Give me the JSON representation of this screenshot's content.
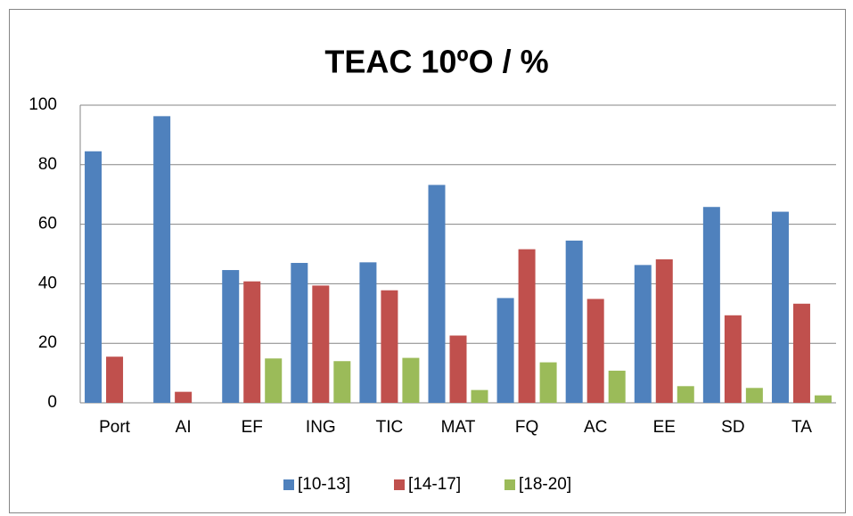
{
  "chart_data": {
    "type": "bar",
    "title": "TEAC 10ºO / %",
    "categories": [
      "Port",
      "AI",
      "EF",
      "ING",
      "TIC",
      "MAT",
      "FQ",
      "AC",
      "EE",
      "SD",
      "TA"
    ],
    "series": [
      {
        "name": "[10-13]",
        "color": "#4f81bd",
        "values": [
          84.5,
          96.3,
          44.6,
          47,
          47.2,
          73.2,
          35.2,
          54.5,
          46.3,
          65.8,
          64.2
        ]
      },
      {
        "name": "[14-17]",
        "color": "#c0504d",
        "values": [
          15.5,
          3.7,
          40.8,
          39.4,
          37.8,
          22.6,
          51.6,
          34.9,
          48.2,
          29.4,
          33.3
        ]
      },
      {
        "name": "[18-20]",
        "color": "#9bbb59",
        "values": [
          0,
          0,
          14.9,
          14,
          15.1,
          4.3,
          13.6,
          10.8,
          5.6,
          5,
          2.5
        ]
      }
    ],
    "ylim": [
      0,
      100
    ],
    "yticks": [
      0,
      20,
      40,
      60,
      80,
      100
    ],
    "grid": true,
    "legend": "bottom"
  }
}
